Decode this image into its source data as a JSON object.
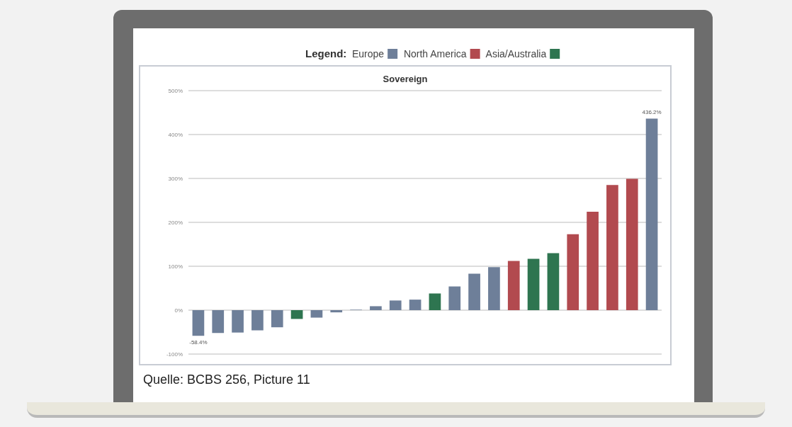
{
  "chart_data": {
    "type": "bar",
    "title": "Sovereign",
    "legend_title": "Legend:",
    "legend": "top",
    "categories": [
      null,
      null,
      null,
      null,
      null,
      null,
      null,
      null,
      null,
      null,
      null,
      null,
      null,
      null,
      null,
      null,
      null,
      null,
      null,
      null,
      null,
      null,
      null,
      null
    ],
    "series": [
      {
        "name": "Europe",
        "color": "#6e7f99",
        "values": [
          -58.4,
          -52,
          -51,
          -46,
          -39,
          null,
          -17,
          -5,
          1,
          9,
          22,
          24,
          null,
          54,
          83,
          98,
          null,
          null,
          null,
          null,
          null,
          null,
          null,
          436.2
        ],
        "value_labels": [
          "-58.4%",
          null,
          null,
          null,
          null,
          null,
          null,
          null,
          null,
          null,
          null,
          null,
          null,
          null,
          null,
          null,
          null,
          null,
          null,
          null,
          null,
          null,
          null,
          "436.2%"
        ]
      },
      {
        "name": "North America",
        "color": "#b24a4f",
        "values": [
          null,
          null,
          null,
          null,
          null,
          null,
          null,
          null,
          null,
          null,
          null,
          null,
          null,
          null,
          null,
          null,
          112,
          null,
          null,
          173,
          224,
          285,
          299,
          null
        ]
      },
      {
        "name": "Asia/Australia",
        "color": "#2e7550",
        "values": [
          null,
          null,
          null,
          null,
          null,
          -20,
          null,
          null,
          null,
          null,
          null,
          null,
          38,
          null,
          null,
          null,
          null,
          117,
          130,
          null,
          null,
          null,
          null,
          null
        ]
      }
    ],
    "ylim": [
      -100,
      500
    ],
    "yticks": [
      {
        "value": -100,
        "label": "-100%"
      },
      {
        "value": 0,
        "label": "0%"
      },
      {
        "value": 100,
        "label": "100%"
      },
      {
        "value": 200,
        "label": "200%"
      },
      {
        "value": 300,
        "label": "300%"
      },
      {
        "value": 400,
        "label": "400%"
      },
      {
        "value": 500,
        "label": "500%"
      }
    ],
    "grid": "y",
    "annotations": [
      "Quelle: BCBS 256, Picture 11"
    ]
  }
}
